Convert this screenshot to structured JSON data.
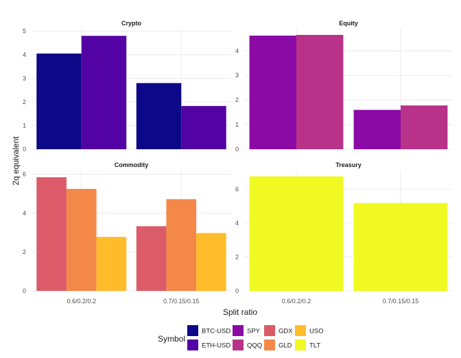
{
  "chart_data": {
    "type": "bar",
    "xlabel": "Split ratio",
    "ylabel": "2q equivalent",
    "legend": {
      "title": "Symbol",
      "position": "bottom",
      "entries": [
        {
          "name": "BTC-USD",
          "color": "#0d0887"
        },
        {
          "name": "ETH-USD",
          "color": "#5302a3"
        },
        {
          "name": "SPY",
          "color": "#8b0aa5"
        },
        {
          "name": "QQQ",
          "color": "#b83289"
        },
        {
          "name": "GDX",
          "color": "#db5c68"
        },
        {
          "name": "GLD",
          "color": "#f48849"
        },
        {
          "name": "USO",
          "color": "#febc2a"
        },
        {
          "name": "TLT",
          "color": "#f0f921"
        }
      ]
    },
    "categories": [
      "0.6/0.2/0.2",
      "0.7/0.15/0.15"
    ],
    "panels": [
      {
        "title": "Crypto",
        "ylim": [
          0,
          5.1
        ],
        "yticks": [
          0,
          1,
          2,
          3,
          4,
          5
        ],
        "series": [
          {
            "name": "BTC-USD",
            "values": [
              4.05,
              2.8
            ]
          },
          {
            "name": "ETH-USD",
            "values": [
              4.8,
              1.83
            ]
          }
        ]
      },
      {
        "title": "Equity",
        "ylim": [
          0,
          4.9
        ],
        "yticks": [
          0,
          1,
          2,
          3,
          4
        ],
        "series": [
          {
            "name": "SPY",
            "values": [
              4.62,
              1.6
            ]
          },
          {
            "name": "QQQ",
            "values": [
              4.65,
              1.78
            ]
          }
        ]
      },
      {
        "title": "Commodity",
        "ylim": [
          0,
          6.2
        ],
        "yticks": [
          0,
          2,
          4,
          6
        ],
        "series": [
          {
            "name": "GDX",
            "values": [
              5.85,
              3.33
            ]
          },
          {
            "name": "GLD",
            "values": [
              5.25,
              4.72
            ]
          },
          {
            "name": "USO",
            "values": [
              2.78,
              2.98
            ]
          }
        ]
      },
      {
        "title": "Treasury",
        "ylim": [
          0,
          7.1
        ],
        "yticks": [
          0,
          2,
          4,
          6
        ],
        "series": [
          {
            "name": "TLT",
            "values": [
              6.75,
              5.18
            ]
          }
        ]
      }
    ]
  }
}
